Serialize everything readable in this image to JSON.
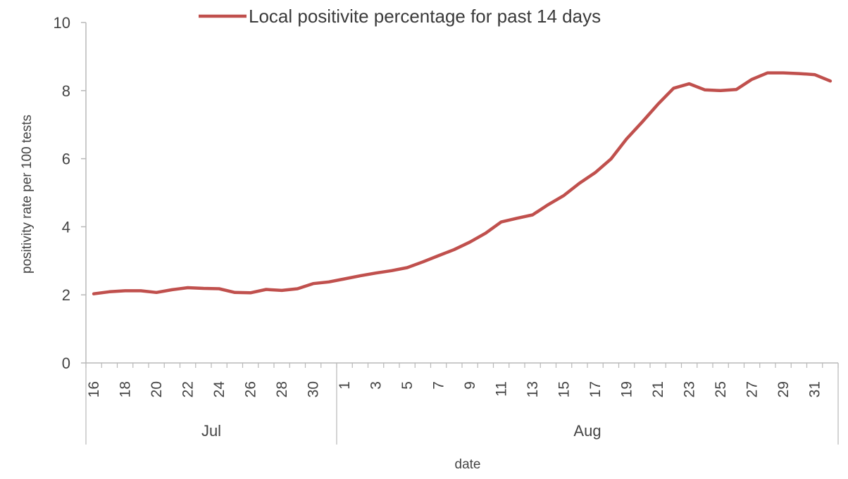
{
  "chart_data": {
    "type": "line",
    "title": "",
    "xlabel": "date",
    "ylabel": "positivity rate per 100 tests",
    "ylim": [
      0,
      10
    ],
    "y_ticks": [
      0,
      2,
      4,
      6,
      8,
      10
    ],
    "grid": false,
    "legend_position": "top",
    "x_start": "Jul 16",
    "x_end": "Sep 1",
    "x_tick_labels": [
      "16",
      "18",
      "20",
      "22",
      "24",
      "26",
      "28",
      "30",
      "1",
      "3",
      "5",
      "7",
      "9",
      "11",
      "13",
      "15",
      "17",
      "19",
      "21",
      "23",
      "25",
      "27",
      "29",
      "31"
    ],
    "month_groups": [
      {
        "label": "Jul",
        "days": [
          "16",
          "17",
          "18",
          "19",
          "20",
          "21",
          "22",
          "23",
          "24",
          "25",
          "26",
          "27",
          "28",
          "29",
          "30",
          "31"
        ]
      },
      {
        "label": "Aug",
        "days": [
          "1",
          "2",
          "3",
          "4",
          "5",
          "6",
          "7",
          "8",
          "9",
          "10",
          "11",
          "12",
          "13",
          "14",
          "15",
          "16",
          "17",
          "18",
          "19",
          "20",
          "21",
          "22",
          "23",
          "24",
          "25",
          "26",
          "27",
          "28",
          "29",
          "30",
          "31",
          "1"
        ]
      }
    ],
    "series": [
      {
        "name": "Local positivite percentage for past 14 days",
        "color": "#c0504d",
        "x": [
          "Jul 16",
          "Jul 17",
          "Jul 18",
          "Jul 19",
          "Jul 20",
          "Jul 21",
          "Jul 22",
          "Jul 23",
          "Jul 24",
          "Jul 25",
          "Jul 26",
          "Jul 27",
          "Jul 28",
          "Jul 29",
          "Jul 30",
          "Jul 31",
          "Aug 1",
          "Aug 2",
          "Aug 3",
          "Aug 4",
          "Aug 5",
          "Aug 6",
          "Aug 7",
          "Aug 8",
          "Aug 9",
          "Aug 10",
          "Aug 11",
          "Aug 12",
          "Aug 13",
          "Aug 14",
          "Aug 15",
          "Aug 16",
          "Aug 17",
          "Aug 18",
          "Aug 19",
          "Aug 20",
          "Aug 21",
          "Aug 22",
          "Aug 23",
          "Aug 24",
          "Aug 25",
          "Aug 26",
          "Aug 27",
          "Aug 28",
          "Aug 29",
          "Aug 30",
          "Aug 31",
          "Sep 1"
        ],
        "values": [
          2.03,
          2.09,
          2.12,
          2.12,
          2.07,
          2.15,
          2.21,
          2.19,
          2.18,
          2.07,
          2.06,
          2.16,
          2.13,
          2.18,
          2.33,
          2.38,
          2.47,
          2.56,
          2.64,
          2.71,
          2.8,
          2.97,
          3.15,
          3.33,
          3.55,
          3.81,
          4.14,
          4.25,
          4.35,
          4.65,
          4.92,
          5.28,
          5.59,
          5.99,
          6.58,
          7.08,
          7.6,
          8.07,
          8.2,
          8.02,
          8.0,
          8.03,
          8.33,
          8.52,
          8.52,
          8.5,
          8.47,
          8.28
        ]
      }
    ]
  }
}
